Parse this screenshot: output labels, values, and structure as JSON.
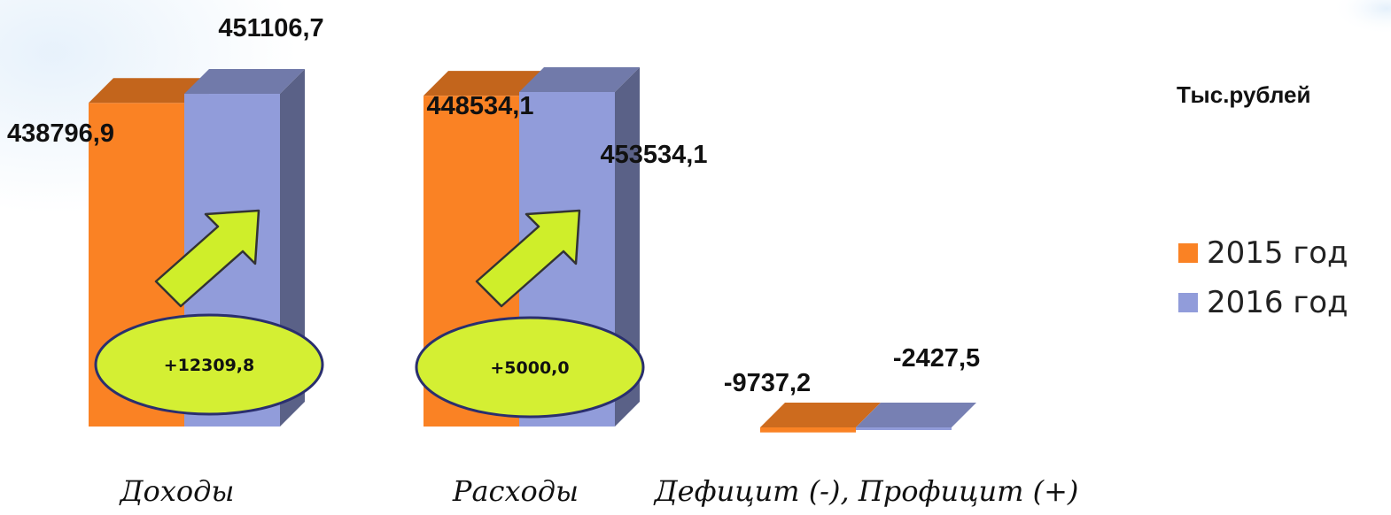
{
  "chart_data": {
    "type": "bar",
    "style": "3d-clustered",
    "unit_label": "Тыс.рублей",
    "categories": [
      "Доходы",
      "Расходы",
      "Дефицит (-), Профицит (+)"
    ],
    "series": [
      {
        "name": "2015 год",
        "color": "#fa8224",
        "values": [
          438796.9,
          448534.1,
          -9737.2
        ]
      },
      {
        "name": "2016 год",
        "color": "#919cda",
        "values": [
          451106.7,
          453534.1,
          -2427.5
        ]
      }
    ],
    "value_labels": [
      [
        "438796,9",
        "451106,7"
      ],
      [
        "448534,1",
        "453534,1"
      ],
      [
        "-9737,2",
        "-2427,5"
      ]
    ],
    "annotations": [
      {
        "category": "Доходы",
        "text": "+12309,8",
        "icon": "up-arrow-icon"
      },
      {
        "category": "Расходы",
        "text": "+5000,0",
        "icon": "up-arrow-icon"
      }
    ],
    "legend_position": "right",
    "grid": false
  }
}
